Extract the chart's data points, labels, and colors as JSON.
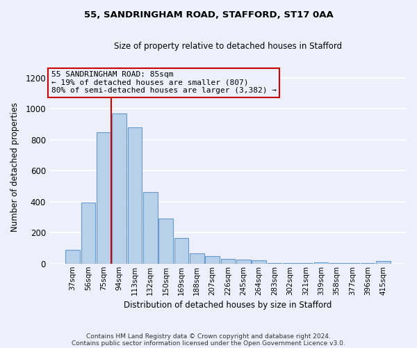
{
  "title1": "55, SANDRINGHAM ROAD, STAFFORD, ST17 0AA",
  "title2": "Size of property relative to detached houses in Stafford",
  "xlabel": "Distribution of detached houses by size in Stafford",
  "ylabel": "Number of detached properties",
  "categories": [
    "37sqm",
    "56sqm",
    "75sqm",
    "94sqm",
    "113sqm",
    "132sqm",
    "150sqm",
    "169sqm",
    "188sqm",
    "207sqm",
    "226sqm",
    "245sqm",
    "264sqm",
    "283sqm",
    "302sqm",
    "321sqm",
    "339sqm",
    "358sqm",
    "377sqm",
    "396sqm",
    "415sqm"
  ],
  "values": [
    90,
    395,
    848,
    968,
    878,
    460,
    293,
    163,
    68,
    50,
    30,
    27,
    20,
    5,
    3,
    2,
    10,
    2,
    2,
    2,
    15
  ],
  "bar_color": "#b8d0ea",
  "bar_edgecolor": "#6699cc",
  "vline_color": "#cc0000",
  "vline_x": 2.5,
  "annotation_text": "55 SANDRINGHAM ROAD: 85sqm\n← 19% of detached houses are smaller (807)\n80% of semi-detached houses are larger (3,382) →",
  "annotation_box_edgecolor": "#cc0000",
  "ylim": [
    0,
    1250
  ],
  "yticks": [
    0,
    200,
    400,
    600,
    800,
    1000,
    1200
  ],
  "footnote1": "Contains HM Land Registry data © Crown copyright and database right 2024.",
  "footnote2": "Contains public sector information licensed under the Open Government Licence v3.0.",
  "bg_color": "#edf0fa",
  "grid_color": "#ffffff"
}
